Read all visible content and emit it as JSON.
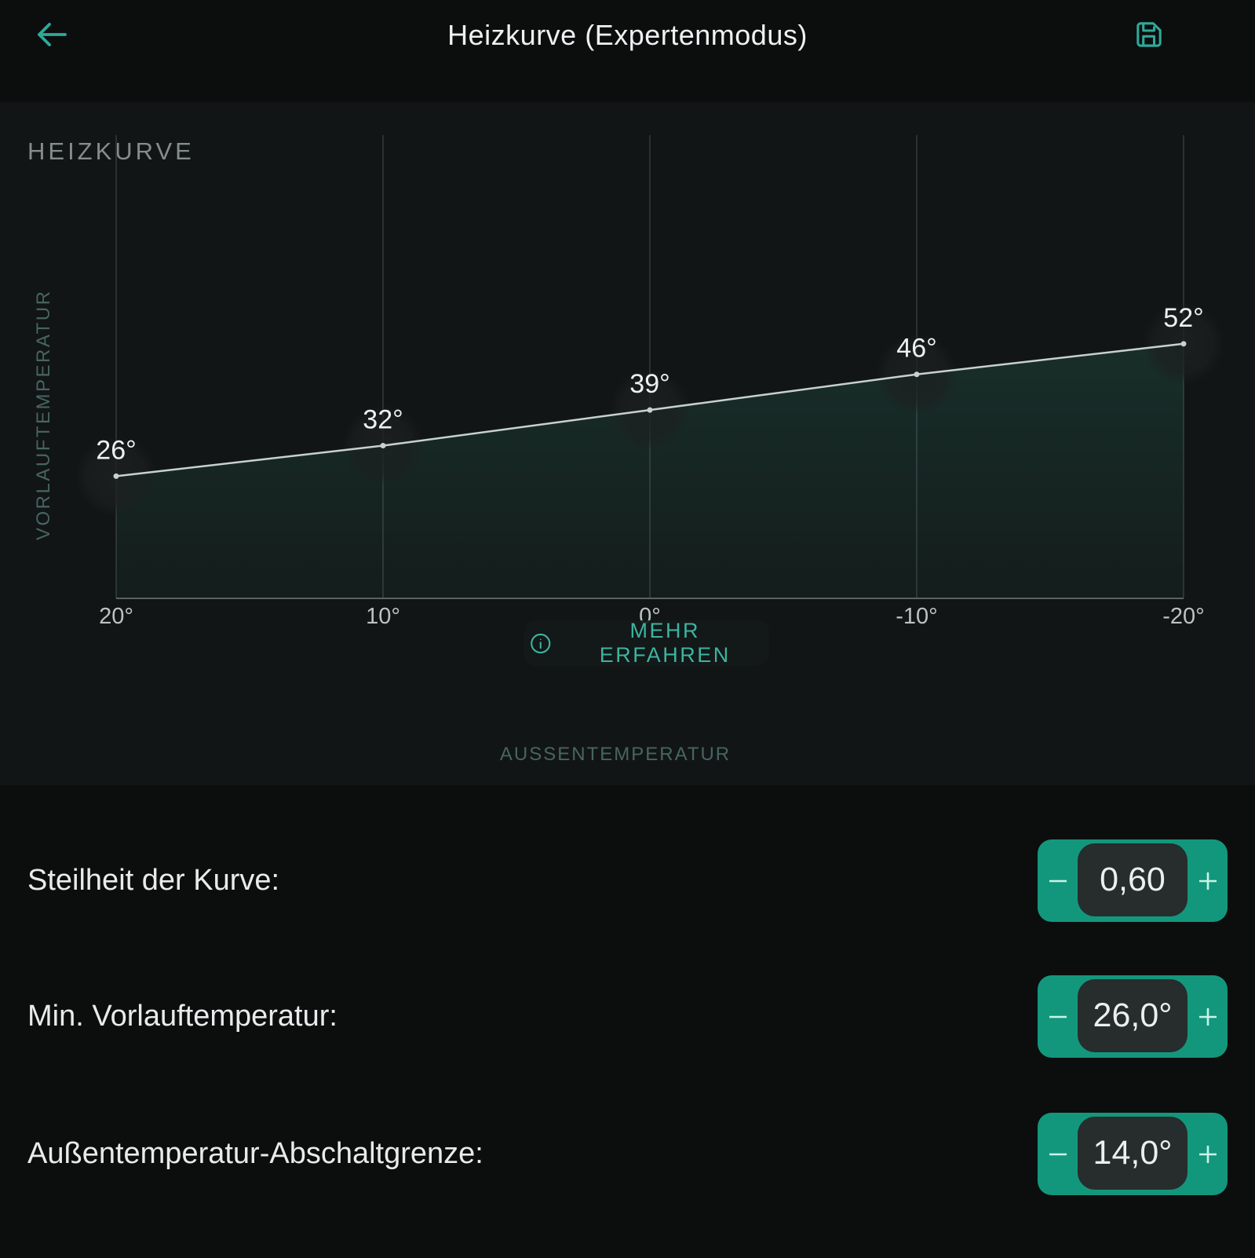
{
  "header": {
    "title": "Heizkurve (Expertenmodus)",
    "back_icon": "arrow-left",
    "save_icon": "floppy-disk"
  },
  "section": {
    "title": "HEIZKURVE"
  },
  "chart_data": {
    "type": "line",
    "title": "HEIZKURVE",
    "xlabel": "AUSSENTEMPERATUR",
    "ylabel": "VORLAUFTEMPERATUR",
    "x": [
      20,
      10,
      0,
      -10,
      -20
    ],
    "x_tick_labels": [
      "20°",
      "10°",
      "0°",
      "-10°",
      "-20°"
    ],
    "x_axis_reversed": true,
    "xlim": [
      20,
      -20
    ],
    "ylim": [
      2,
      93
    ],
    "grid": "vertical-only",
    "legend": "none",
    "series": [
      {
        "name": "Vorlauftemperatur",
        "values": [
          26,
          32,
          39,
          46,
          52
        ],
        "point_labels": [
          "26°",
          "32°",
          "39°",
          "46°",
          "52°"
        ],
        "area_fill": true
      }
    ],
    "overlay_button": {
      "label": "MEHR ERFAHREN",
      "icon": "info-circle"
    }
  },
  "settings": {
    "rows": [
      {
        "label": "Steilheit der Kurve:",
        "value": "0,60"
      },
      {
        "label": "Min. Vorlauftemperatur:",
        "value": "26,0°"
      },
      {
        "label": "Außentemperatur-Abschaltgrenze:",
        "value": "14,0°"
      }
    ],
    "stepper": {
      "decrement_icon": "minus",
      "increment_icon": "plus"
    }
  },
  "colors": {
    "background": "#0c0e0e",
    "panel": "#121515",
    "accent_teal": "#2fa899",
    "stepper_teal": "#13977c",
    "stepper_inner": "#272c2c",
    "line": "#c7d1cf",
    "grid": "#2b3131",
    "axis": "#596060",
    "tick_text": "#bcc2c2",
    "axis_caption": "#47655f",
    "point_label": "#eef1f1",
    "more_button_text": "#3cb4a1",
    "area_fill_rgb": "56,178,148"
  }
}
